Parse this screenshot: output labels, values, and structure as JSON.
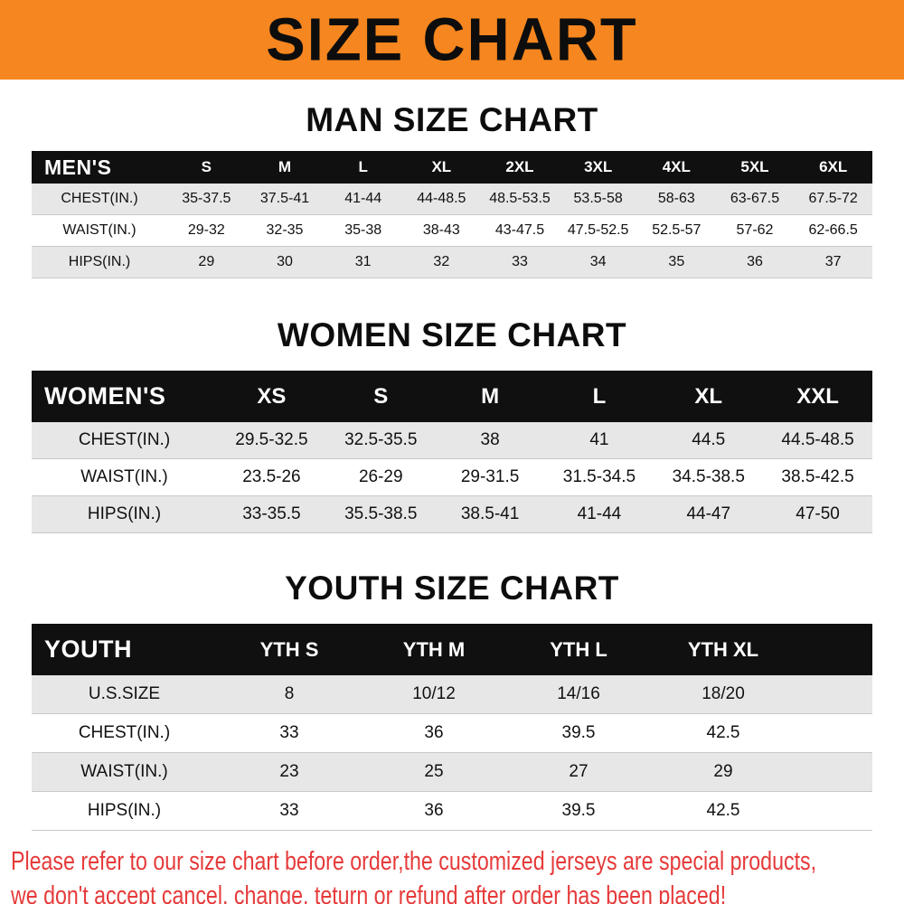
{
  "banner": {
    "title": "SIZE CHART"
  },
  "sections": [
    {
      "heading": "MAN SIZE CHART",
      "table": {
        "label": "MEN'S",
        "columns": [
          "S",
          "M",
          "L",
          "XL",
          "2XL",
          "3XL",
          "4XL",
          "5XL",
          "6XL"
        ],
        "rows": [
          {
            "label": "CHEST(IN.)",
            "values": [
              "35-37.5",
              "37.5-41",
              "41-44",
              "44-48.5",
              "48.5-53.5",
              "53.5-58",
              "58-63",
              "63-67.5",
              "67.5-72"
            ]
          },
          {
            "label": "WAIST(IN.)",
            "values": [
              "29-32",
              "32-35",
              "35-38",
              "38-43",
              "43-47.5",
              "47.5-52.5",
              "52.5-57",
              "57-62",
              "62-66.5"
            ]
          },
          {
            "label": "HIPS(IN.)",
            "values": [
              "29",
              "30",
              "31",
              "32",
              "33",
              "34",
              "35",
              "36",
              "37"
            ]
          }
        ]
      }
    },
    {
      "heading": "WOMEN SIZE CHART",
      "table": {
        "label": "WOMEN'S",
        "columns": [
          "XS",
          "S",
          "M",
          "L",
          "XL",
          "XXL"
        ],
        "rows": [
          {
            "label": "CHEST(IN.)",
            "values": [
              "29.5-32.5",
              "32.5-35.5",
              "38",
              "41",
              "44.5",
              "44.5-48.5"
            ]
          },
          {
            "label": "WAIST(IN.)",
            "values": [
              "23.5-26",
              "26-29",
              "29-31.5",
              "31.5-34.5",
              "34.5-38.5",
              "38.5-42.5"
            ]
          },
          {
            "label": "HIPS(IN.)",
            "values": [
              "33-35.5",
              "35.5-38.5",
              "38.5-41",
              "41-44",
              "44-47",
              "47-50"
            ]
          }
        ]
      }
    },
    {
      "heading": "YOUTH SIZE CHART",
      "table": {
        "label": "YOUTH",
        "columns": [
          "YTH S",
          "YTH M",
          "YTH L",
          "YTH XL"
        ],
        "rows": [
          {
            "label": "U.S.SIZE",
            "values": [
              "8",
              "10/12",
              "14/16",
              "18/20"
            ]
          },
          {
            "label": "CHEST(IN.)",
            "values": [
              "33",
              "36",
              "39.5",
              "42.5"
            ]
          },
          {
            "label": "WAIST(IN.)",
            "values": [
              "23",
              "25",
              "27",
              "29"
            ]
          },
          {
            "label": "HIPS(IN.)",
            "values": [
              "33",
              "36",
              "39.5",
              "42.5"
            ]
          }
        ]
      }
    }
  ],
  "footer": {
    "line1": "Please refer to our size chart before order,the customized jerseys are special products,",
    "line2": "we don't accept cancel, change, teturn or refund after order has been placed!"
  },
  "colors": {
    "banner_bg": "#f6861f",
    "table_header_bg": "#101010",
    "row_alt_bg": "#e7e7e7",
    "note_red": "#e63a3a"
  }
}
